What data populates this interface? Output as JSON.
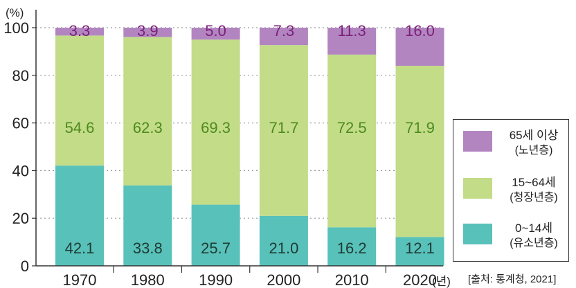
{
  "chart_data": {
    "type": "bar",
    "stacked": true,
    "unit": "(%)",
    "categories": [
      "1970",
      "1980",
      "1990",
      "2000",
      "2010",
      "2020"
    ],
    "category_suffix": "(년)",
    "y_ticks": [
      "0",
      "20",
      "40",
      "60",
      "80",
      "100"
    ],
    "ylim": [
      0,
      100
    ],
    "grid": "dotted horizontal",
    "legend_placement": "right-bottom",
    "series": [
      {
        "name": "0~14세",
        "subname": "(유소년층)",
        "color": "#58c1b9",
        "text_color": "#1e3a34",
        "values": [
          42.1,
          33.8,
          25.7,
          21.0,
          16.2,
          12.1
        ],
        "labels": [
          "42.1",
          "33.8",
          "25.7",
          "21.0",
          "16.2",
          "12.1"
        ]
      },
      {
        "name": "15~64세",
        "subname": "(청장년층)",
        "color": "#c2dc88",
        "text_color": "#4e8a1e",
        "values": [
          54.6,
          62.3,
          69.3,
          71.7,
          72.5,
          71.9
        ],
        "labels": [
          "54.6",
          "62.3",
          "69.3",
          "71.7",
          "72.5",
          "71.9"
        ]
      },
      {
        "name": "65세 이상",
        "subname": "(노년층)",
        "color": "#b285c0",
        "text_color": "#7b1f7a",
        "values": [
          3.3,
          3.9,
          5.0,
          7.3,
          11.3,
          16.0
        ],
        "labels": [
          "3.3",
          "3.9",
          "5.0",
          "7.3",
          "11.3",
          "16.0"
        ]
      }
    ],
    "source": "[출처: 통계청, 2021]"
  }
}
